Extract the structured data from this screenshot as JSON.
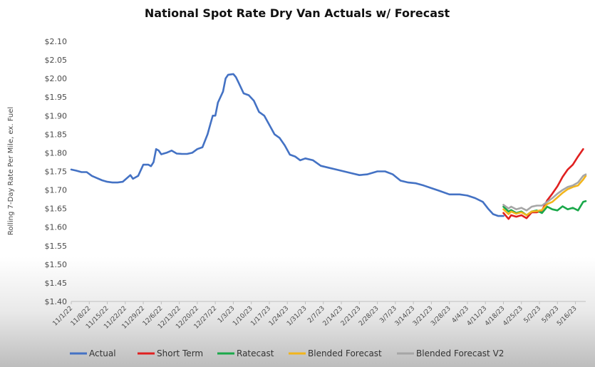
{
  "chart_data": {
    "type": "line",
    "title": "National Spot Rate Dry Van Actuals w/ Forecast",
    "ylabel": "Rolling 7-Day Rate Per Mile, ex. Fuel",
    "xlabel": "",
    "ylim": [
      1.4,
      2.1
    ],
    "yticks": [
      1.4,
      1.45,
      1.5,
      1.55,
      1.6,
      1.65,
      1.7,
      1.75,
      1.8,
      1.85,
      1.9,
      1.95,
      2.0,
      2.05,
      2.1
    ],
    "ytick_labels": [
      "$1.40",
      "$1.45",
      "$1.50",
      "$1.55",
      "$1.60",
      "$1.65",
      "$1.70",
      "$1.75",
      "$1.80",
      "$1.85",
      "$1.90",
      "$1.95",
      "$2.00",
      "$2.05",
      "$2.10"
    ],
    "x_start": "11/1/22",
    "x_end": "5/20/23",
    "xtick_labels": [
      "11/1/22",
      "11/8/22",
      "11/15/22",
      "11/22/22",
      "11/29/22",
      "12/6/22",
      "12/13/22",
      "12/20/22",
      "12/27/22",
      "1/3/23",
      "1/10/23",
      "1/17/23",
      "1/24/23",
      "1/31/23",
      "2/7/23",
      "2/14/23",
      "2/21/23",
      "2/28/23",
      "3/7/23",
      "3/14/23",
      "3/21/23",
      "3/28/23",
      "4/4/23",
      "4/11/23",
      "4/18/23",
      "4/25/23",
      "5/2/23",
      "5/9/23",
      "5/16/23"
    ],
    "grid": false,
    "legend_position": "bottom",
    "series": [
      {
        "name": "Actual",
        "color": "#4472c4",
        "points": [
          [
            "11/1/22",
            1.755
          ],
          [
            "11/3/22",
            1.752
          ],
          [
            "11/5/22",
            1.748
          ],
          [
            "11/7/22",
            1.748
          ],
          [
            "11/9/22",
            1.738
          ],
          [
            "11/11/22",
            1.732
          ],
          [
            "11/13/22",
            1.726
          ],
          [
            "11/15/22",
            1.722
          ],
          [
            "11/17/22",
            1.72
          ],
          [
            "11/19/22",
            1.72
          ],
          [
            "11/21/22",
            1.722
          ],
          [
            "11/22/22",
            1.728
          ],
          [
            "11/24/22",
            1.74
          ],
          [
            "11/25/22",
            1.73
          ],
          [
            "11/27/22",
            1.738
          ],
          [
            "11/29/22",
            1.768
          ],
          [
            "12/1/22",
            1.768
          ],
          [
            "12/2/22",
            1.764
          ],
          [
            "12/3/22",
            1.775
          ],
          [
            "12/4/22",
            1.81
          ],
          [
            "12/5/22",
            1.806
          ],
          [
            "12/6/22",
            1.796
          ],
          [
            "12/8/22",
            1.8
          ],
          [
            "12/10/22",
            1.806
          ],
          [
            "12/12/22",
            1.798
          ],
          [
            "12/14/22",
            1.797
          ],
          [
            "12/16/22",
            1.797
          ],
          [
            "12/18/22",
            1.8
          ],
          [
            "12/20/22",
            1.81
          ],
          [
            "12/22/22",
            1.815
          ],
          [
            "12/24/22",
            1.85
          ],
          [
            "12/25/22",
            1.875
          ],
          [
            "12/26/22",
            1.9
          ],
          [
            "12/27/22",
            1.9
          ],
          [
            "12/28/22",
            1.935
          ],
          [
            "12/30/22",
            1.965
          ],
          [
            "12/31/22",
            2.0
          ],
          [
            "1/1/23",
            2.01
          ],
          [
            "1/3/23",
            2.012
          ],
          [
            "1/4/23",
            2.004
          ],
          [
            "1/5/23",
            1.99
          ],
          [
            "1/7/23",
            1.96
          ],
          [
            "1/9/23",
            1.955
          ],
          [
            "1/11/23",
            1.94
          ],
          [
            "1/13/23",
            1.91
          ],
          [
            "1/15/23",
            1.9
          ],
          [
            "1/17/23",
            1.875
          ],
          [
            "1/19/23",
            1.85
          ],
          [
            "1/21/23",
            1.84
          ],
          [
            "1/23/23",
            1.82
          ],
          [
            "1/25/23",
            1.795
          ],
          [
            "1/27/23",
            1.79
          ],
          [
            "1/29/23",
            1.78
          ],
          [
            "1/31/23",
            1.785
          ],
          [
            "2/3/23",
            1.78
          ],
          [
            "2/6/23",
            1.765
          ],
          [
            "2/9/23",
            1.76
          ],
          [
            "2/12/23",
            1.755
          ],
          [
            "2/15/23",
            1.75
          ],
          [
            "2/18/23",
            1.745
          ],
          [
            "2/21/23",
            1.74
          ],
          [
            "2/24/23",
            1.742
          ],
          [
            "2/28/23",
            1.75
          ],
          [
            "3/3/23",
            1.75
          ],
          [
            "3/6/23",
            1.742
          ],
          [
            "3/9/23",
            1.725
          ],
          [
            "3/12/23",
            1.72
          ],
          [
            "3/15/23",
            1.718
          ],
          [
            "3/18/23",
            1.712
          ],
          [
            "3/21/23",
            1.705
          ],
          [
            "3/24/23",
            1.698
          ],
          [
            "3/28/23",
            1.688
          ],
          [
            "4/1/23",
            1.688
          ],
          [
            "4/4/23",
            1.685
          ],
          [
            "4/7/23",
            1.678
          ],
          [
            "4/10/23",
            1.668
          ],
          [
            "4/12/23",
            1.65
          ],
          [
            "4/14/23",
            1.635
          ],
          [
            "4/16/23",
            1.63
          ],
          [
            "4/18/23",
            1.63
          ]
        ]
      },
      {
        "name": "Short Term",
        "color": "#e02020",
        "points": [
          [
            "4/18/23",
            1.638
          ],
          [
            "4/20/23",
            1.622
          ],
          [
            "4/21/23",
            1.632
          ],
          [
            "4/23/23",
            1.628
          ],
          [
            "4/25/23",
            1.632
          ],
          [
            "4/27/23",
            1.624
          ],
          [
            "4/29/23",
            1.64
          ],
          [
            "5/1/23",
            1.64
          ],
          [
            "5/3/23",
            1.645
          ],
          [
            "5/5/23",
            1.672
          ],
          [
            "5/7/23",
            1.69
          ],
          [
            "5/9/23",
            1.71
          ],
          [
            "5/11/23",
            1.735
          ],
          [
            "5/13/23",
            1.755
          ],
          [
            "5/15/23",
            1.768
          ],
          [
            "5/17/23",
            1.79
          ],
          [
            "5/19/23",
            1.81
          ]
        ]
      },
      {
        "name": "Ratecast",
        "color": "#1aa84a",
        "points": [
          [
            "4/18/23",
            1.655
          ],
          [
            "4/20/23",
            1.642
          ],
          [
            "4/21/23",
            1.646
          ],
          [
            "4/23/23",
            1.638
          ],
          [
            "4/25/23",
            1.642
          ],
          [
            "4/27/23",
            1.632
          ],
          [
            "4/29/23",
            1.642
          ],
          [
            "5/1/23",
            1.645
          ],
          [
            "5/3/23",
            1.638
          ],
          [
            "5/5/23",
            1.655
          ],
          [
            "5/7/23",
            1.648
          ],
          [
            "5/9/23",
            1.645
          ],
          [
            "5/11/23",
            1.656
          ],
          [
            "5/13/23",
            1.648
          ],
          [
            "5/15/23",
            1.652
          ],
          [
            "5/17/23",
            1.645
          ],
          [
            "5/19/23",
            1.668
          ],
          [
            "5/20/23",
            1.67
          ]
        ]
      },
      {
        "name": "Blended Forecast",
        "color": "#f2b51c",
        "points": [
          [
            "4/18/23",
            1.648
          ],
          [
            "4/20/23",
            1.635
          ],
          [
            "4/21/23",
            1.642
          ],
          [
            "4/23/23",
            1.636
          ],
          [
            "4/25/23",
            1.64
          ],
          [
            "4/27/23",
            1.632
          ],
          [
            "4/29/23",
            1.642
          ],
          [
            "5/1/23",
            1.643
          ],
          [
            "5/3/23",
            1.646
          ],
          [
            "5/5/23",
            1.662
          ],
          [
            "5/7/23",
            1.668
          ],
          [
            "5/9/23",
            1.68
          ],
          [
            "5/11/23",
            1.692
          ],
          [
            "5/13/23",
            1.702
          ],
          [
            "5/15/23",
            1.708
          ],
          [
            "5/17/23",
            1.712
          ],
          [
            "5/19/23",
            1.728
          ],
          [
            "5/20/23",
            1.738
          ]
        ]
      },
      {
        "name": "Blended Forecast V2",
        "color": "#a6a6a6",
        "points": [
          [
            "4/18/23",
            1.66
          ],
          [
            "4/20/23",
            1.65
          ],
          [
            "4/21/23",
            1.655
          ],
          [
            "4/23/23",
            1.648
          ],
          [
            "4/25/23",
            1.652
          ],
          [
            "4/27/23",
            1.645
          ],
          [
            "4/29/23",
            1.655
          ],
          [
            "5/1/23",
            1.658
          ],
          [
            "5/3/23",
            1.658
          ],
          [
            "5/5/23",
            1.668
          ],
          [
            "5/7/23",
            1.678
          ],
          [
            "5/9/23",
            1.69
          ],
          [
            "5/11/23",
            1.7
          ],
          [
            "5/13/23",
            1.708
          ],
          [
            "5/15/23",
            1.712
          ],
          [
            "5/17/23",
            1.72
          ],
          [
            "5/19/23",
            1.738
          ],
          [
            "5/20/23",
            1.742
          ]
        ]
      }
    ]
  }
}
